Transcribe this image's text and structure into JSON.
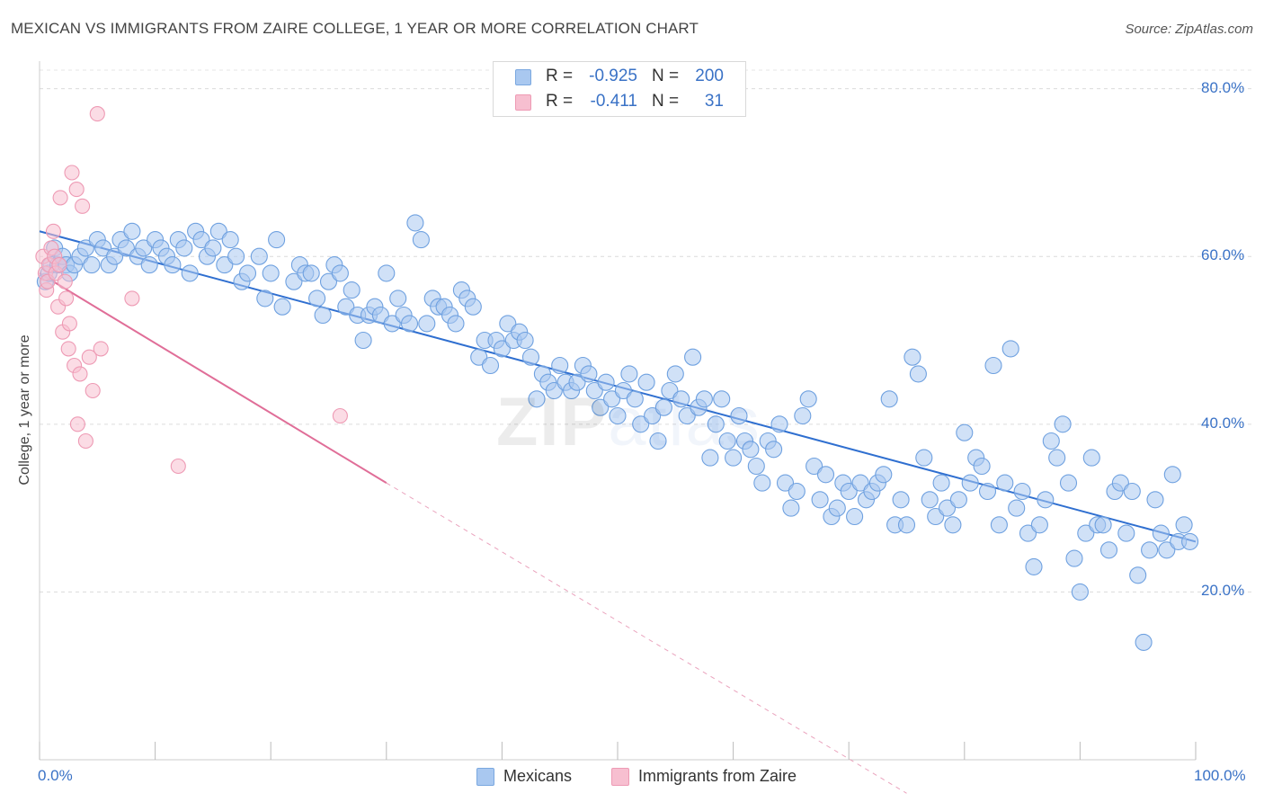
{
  "header": {
    "title": "MEXICAN VS IMMIGRANTS FROM ZAIRE COLLEGE, 1 YEAR OR MORE CORRELATION CHART",
    "source": "Source: ZipAtlas.com"
  },
  "watermark": {
    "zip": "ZIP",
    "atlas": "atlas"
  },
  "legend": {
    "rows": [
      {
        "r_label": "R =",
        "r_value": "-0.925",
        "n_label": "N =",
        "n_value": "200",
        "color": "#a9c8f0",
        "stroke": "#7aa8e0"
      },
      {
        "r_label": "R =",
        "r_value": "-0.411",
        "n_label": "N =",
        "n_value": "31",
        "color": "#f7bfd0",
        "stroke": "#ee9ab4"
      }
    ]
  },
  "bottom_legend": [
    {
      "label": "Mexicans",
      "color": "#a9c8f0",
      "stroke": "#7aa8e0"
    },
    {
      "label": "Immigrants from Zaire",
      "color": "#f7bfd0",
      "stroke": "#ee9ab4"
    }
  ],
  "chart_data": {
    "type": "scatter",
    "xlabel": "",
    "ylabel": "College, 1 year or more",
    "xlim": [
      0,
      100
    ],
    "ylim": [
      0,
      82
    ],
    "x_tick_labels": [
      "0.0%",
      "100.0%"
    ],
    "y_ticks": [
      20,
      40,
      60,
      80
    ],
    "y_tick_labels": [
      "20.0%",
      "40.0%",
      "60.0%",
      "80.0%"
    ],
    "grid": "horizontal dashed",
    "series": [
      {
        "name": "Mexicans",
        "color": "#6fa1e0",
        "fill": "#a9c8f0",
        "r": -0.925,
        "n": 200,
        "trend": {
          "x": [
            0,
            100
          ],
          "y": [
            63,
            26
          ]
        },
        "points": [
          [
            0.5,
            57
          ],
          [
            0.8,
            58
          ],
          [
            1,
            59
          ],
          [
            1.3,
            61
          ],
          [
            1.6,
            59
          ],
          [
            2,
            60
          ],
          [
            2.3,
            59
          ],
          [
            2.6,
            58
          ],
          [
            3,
            59
          ],
          [
            3.5,
            60
          ],
          [
            4,
            61
          ],
          [
            4.5,
            59
          ],
          [
            5,
            62
          ],
          [
            5.5,
            61
          ],
          [
            6,
            59
          ],
          [
            6.5,
            60
          ],
          [
            7,
            62
          ],
          [
            7.5,
            61
          ],
          [
            8,
            63
          ],
          [
            8.5,
            60
          ],
          [
            9,
            61
          ],
          [
            9.5,
            59
          ],
          [
            10,
            62
          ],
          [
            10.5,
            61
          ],
          [
            11,
            60
          ],
          [
            11.5,
            59
          ],
          [
            12,
            62
          ],
          [
            12.5,
            61
          ],
          [
            13,
            58
          ],
          [
            13.5,
            63
          ],
          [
            14,
            62
          ],
          [
            14.5,
            60
          ],
          [
            15,
            61
          ],
          [
            15.5,
            63
          ],
          [
            16,
            59
          ],
          [
            16.5,
            62
          ],
          [
            17,
            60
          ],
          [
            17.5,
            57
          ],
          [
            18,
            58
          ],
          [
            19,
            60
          ],
          [
            19.5,
            55
          ],
          [
            20,
            58
          ],
          [
            20.5,
            62
          ],
          [
            21,
            54
          ],
          [
            22,
            57
          ],
          [
            22.5,
            59
          ],
          [
            23,
            58
          ],
          [
            23.5,
            58
          ],
          [
            24,
            55
          ],
          [
            24.5,
            53
          ],
          [
            25,
            57
          ],
          [
            25.5,
            59
          ],
          [
            26,
            58
          ],
          [
            26.5,
            54
          ],
          [
            27,
            56
          ],
          [
            27.5,
            53
          ],
          [
            28,
            50
          ],
          [
            28.5,
            53
          ],
          [
            29,
            54
          ],
          [
            29.5,
            53
          ],
          [
            30,
            58
          ],
          [
            30.5,
            52
          ],
          [
            31,
            55
          ],
          [
            31.5,
            53
          ],
          [
            32,
            52
          ],
          [
            32.5,
            64
          ],
          [
            33,
            62
          ],
          [
            33.5,
            52
          ],
          [
            34,
            55
          ],
          [
            34.5,
            54
          ],
          [
            35,
            54
          ],
          [
            35.5,
            53
          ],
          [
            36,
            52
          ],
          [
            36.5,
            56
          ],
          [
            37,
            55
          ],
          [
            37.5,
            54
          ],
          [
            38,
            48
          ],
          [
            38.5,
            50
          ],
          [
            39,
            47
          ],
          [
            39.5,
            50
          ],
          [
            40,
            49
          ],
          [
            40.5,
            52
          ],
          [
            41,
            50
          ],
          [
            41.5,
            51
          ],
          [
            42,
            50
          ],
          [
            42.5,
            48
          ],
          [
            43,
            43
          ],
          [
            43.5,
            46
          ],
          [
            44,
            45
          ],
          [
            44.5,
            44
          ],
          [
            45,
            47
          ],
          [
            45.5,
            45
          ],
          [
            46,
            44
          ],
          [
            46.5,
            45
          ],
          [
            47,
            47
          ],
          [
            47.5,
            46
          ],
          [
            48,
            44
          ],
          [
            48.5,
            42
          ],
          [
            49,
            45
          ],
          [
            49.5,
            43
          ],
          [
            50,
            41
          ],
          [
            50.5,
            44
          ],
          [
            51,
            46
          ],
          [
            51.5,
            43
          ],
          [
            52,
            40
          ],
          [
            52.5,
            45
          ],
          [
            53,
            41
          ],
          [
            53.5,
            38
          ],
          [
            54,
            42
          ],
          [
            54.5,
            44
          ],
          [
            55,
            46
          ],
          [
            55.5,
            43
          ],
          [
            56,
            41
          ],
          [
            56.5,
            48
          ],
          [
            57,
            42
          ],
          [
            57.5,
            43
          ],
          [
            58,
            36
          ],
          [
            58.5,
            40
          ],
          [
            59,
            43
          ],
          [
            59.5,
            38
          ],
          [
            60,
            36
          ],
          [
            60.5,
            41
          ],
          [
            61,
            38
          ],
          [
            61.5,
            37
          ],
          [
            62,
            35
          ],
          [
            62.5,
            33
          ],
          [
            63,
            38
          ],
          [
            63.5,
            37
          ],
          [
            64,
            40
          ],
          [
            64.5,
            33
          ],
          [
            65,
            30
          ],
          [
            65.5,
            32
          ],
          [
            66,
            41
          ],
          [
            66.5,
            43
          ],
          [
            67,
            35
          ],
          [
            67.5,
            31
          ],
          [
            68,
            34
          ],
          [
            68.5,
            29
          ],
          [
            69,
            30
          ],
          [
            69.5,
            33
          ],
          [
            70,
            32
          ],
          [
            70.5,
            29
          ],
          [
            71,
            33
          ],
          [
            71.5,
            31
          ],
          [
            72,
            32
          ],
          [
            72.5,
            33
          ],
          [
            73,
            34
          ],
          [
            73.5,
            43
          ],
          [
            74,
            28
          ],
          [
            74.5,
            31
          ],
          [
            75,
            28
          ],
          [
            75.5,
            48
          ],
          [
            76,
            46
          ],
          [
            76.5,
            36
          ],
          [
            77,
            31
          ],
          [
            77.5,
            29
          ],
          [
            78,
            33
          ],
          [
            78.5,
            30
          ],
          [
            79,
            28
          ],
          [
            79.5,
            31
          ],
          [
            80,
            39
          ],
          [
            80.5,
            33
          ],
          [
            81,
            36
          ],
          [
            81.5,
            35
          ],
          [
            82,
            32
          ],
          [
            82.5,
            47
          ],
          [
            83,
            28
          ],
          [
            83.5,
            33
          ],
          [
            84,
            49
          ],
          [
            84.5,
            30
          ],
          [
            85,
            32
          ],
          [
            85.5,
            27
          ],
          [
            86,
            23
          ],
          [
            86.5,
            28
          ],
          [
            87,
            31
          ],
          [
            87.5,
            38
          ],
          [
            88,
            36
          ],
          [
            88.5,
            40
          ],
          [
            89,
            33
          ],
          [
            89.5,
            24
          ],
          [
            90,
            20
          ],
          [
            90.5,
            27
          ],
          [
            91,
            36
          ],
          [
            91.5,
            28
          ],
          [
            92,
            28
          ],
          [
            92.5,
            25
          ],
          [
            93,
            32
          ],
          [
            93.5,
            33
          ],
          [
            94,
            27
          ],
          [
            94.5,
            32
          ],
          [
            95,
            22
          ],
          [
            95.5,
            14
          ],
          [
            96,
            25
          ],
          [
            96.5,
            31
          ],
          [
            97,
            27
          ],
          [
            97.5,
            25
          ],
          [
            98,
            34
          ],
          [
            98.5,
            26
          ],
          [
            99,
            28
          ],
          [
            99.5,
            26
          ]
        ]
      },
      {
        "name": "Immigrants from Zaire",
        "color": "#ee9ab4",
        "fill": "#f7bfd0",
        "r": -0.411,
        "n": 31,
        "trend": {
          "x": [
            0,
            30
          ],
          "y": [
            58,
            33
          ]
        },
        "trend_dashed": {
          "x": [
            30,
            75
          ],
          "y": [
            33,
            -4
          ]
        },
        "points": [
          [
            0.3,
            60
          ],
          [
            0.5,
            58
          ],
          [
            0.6,
            56
          ],
          [
            0.7,
            57
          ],
          [
            0.8,
            59
          ],
          [
            1,
            61
          ],
          [
            1.2,
            63
          ],
          [
            1.3,
            60
          ],
          [
            1.4,
            58
          ],
          [
            1.6,
            54
          ],
          [
            1.7,
            59
          ],
          [
            1.8,
            67
          ],
          [
            2,
            51
          ],
          [
            2.2,
            57
          ],
          [
            2.3,
            55
          ],
          [
            2.5,
            49
          ],
          [
            2.6,
            52
          ],
          [
            2.8,
            70
          ],
          [
            3,
            47
          ],
          [
            3.2,
            68
          ],
          [
            3.3,
            40
          ],
          [
            3.5,
            46
          ],
          [
            3.7,
            66
          ],
          [
            4,
            38
          ],
          [
            4.3,
            48
          ],
          [
            4.6,
            44
          ],
          [
            5,
            77
          ],
          [
            5.3,
            49
          ],
          [
            8,
            55
          ],
          [
            12,
            35
          ],
          [
            26,
            41
          ]
        ]
      }
    ]
  }
}
